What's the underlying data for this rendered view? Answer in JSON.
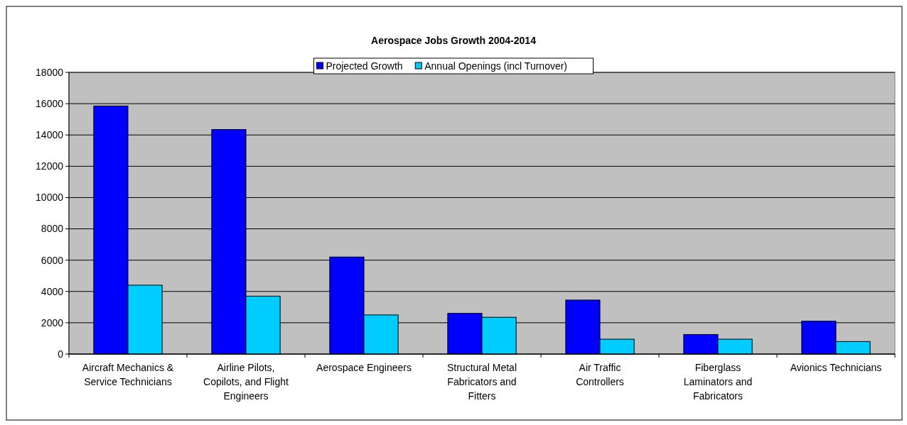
{
  "chart_data": {
    "type": "bar",
    "title": "Aerospace Jobs Growth 2004-2014",
    "categories": [
      "Aircraft Mechanics & Service Technicians",
      "Airline Pilots, Copilots, and Flight Engineers",
      "Aerospace Engineers",
      "Structural Metal Fabricators and Fitters",
      "Air Traffic Controllers",
      "Fiberglass Laminators and Fabricators",
      "Avionics Technicians"
    ],
    "series": [
      {
        "name": "Projected Growth",
        "color": "#0000ff",
        "values": [
          15850,
          14350,
          6200,
          2600,
          3450,
          1250,
          2100
        ]
      },
      {
        "name": "Annual Openings (incl Turnover)",
        "color": "#00ccff",
        "values": [
          4400,
          3700,
          2500,
          2350,
          950,
          950,
          800
        ]
      }
    ],
    "ylim": [
      0,
      18000
    ],
    "yticks": [
      0,
      2000,
      4000,
      6000,
      8000,
      10000,
      12000,
      14000,
      16000,
      18000
    ],
    "grid": "y",
    "legend": "top"
  }
}
